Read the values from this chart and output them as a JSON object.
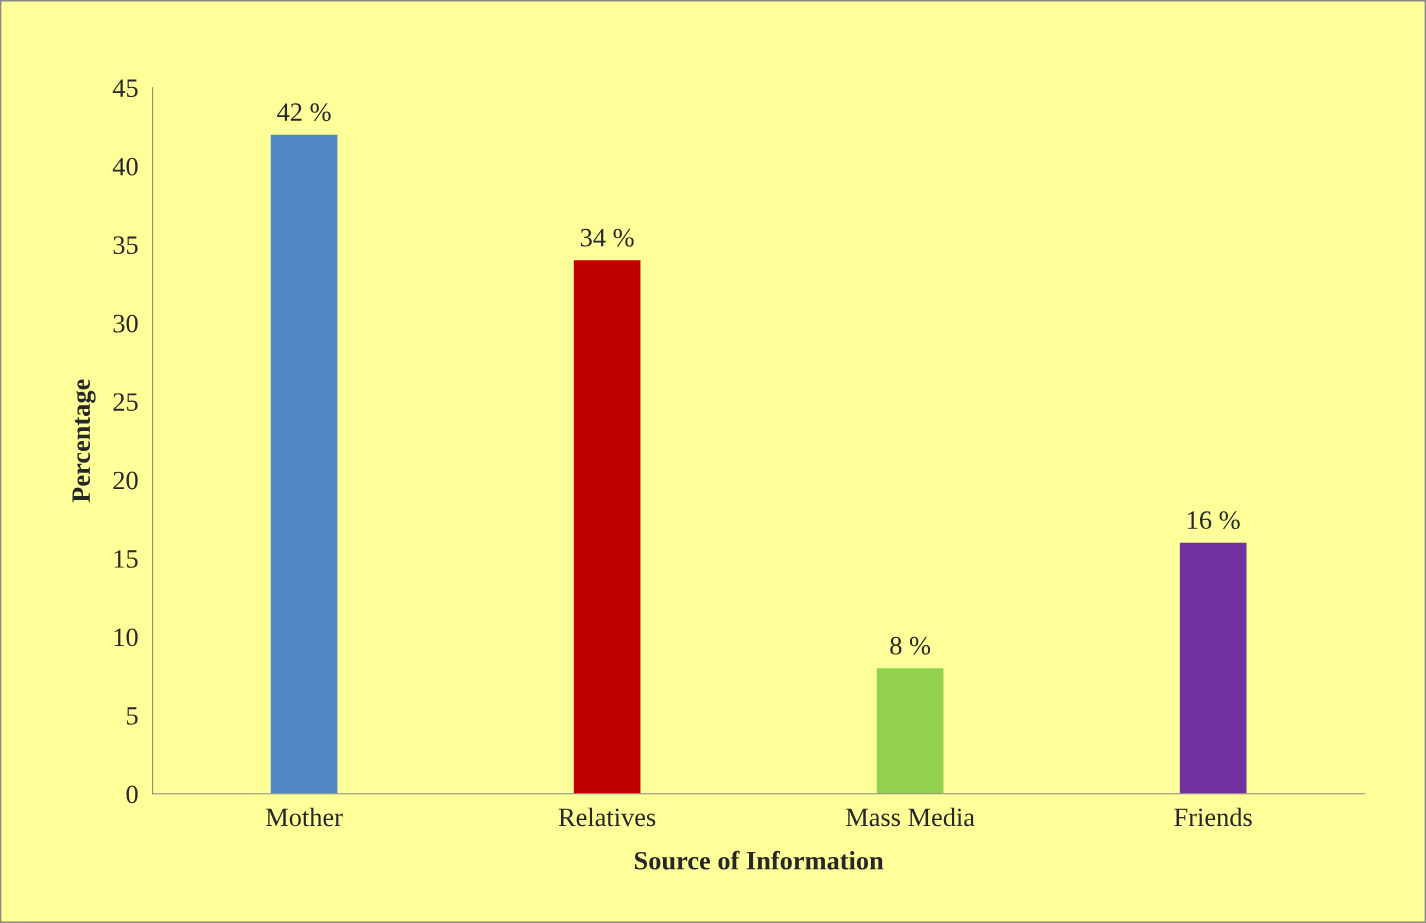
{
  "chart_data": {
    "type": "bar",
    "xlabel": "Source of Information",
    "ylabel": "Percentage",
    "categories": [
      "Mother",
      "Relatives",
      "Mass Media",
      "Friends"
    ],
    "values": [
      42,
      34,
      8,
      16
    ],
    "colors": [
      "#4f86c6",
      "#c00000",
      "#92d050",
      "#7030a0"
    ],
    "value_labels": [
      "42 %",
      "34 %",
      "8 %",
      "16 %"
    ],
    "ylim": [
      0,
      45
    ],
    "yticks": [
      0,
      5,
      10,
      15,
      20,
      25,
      30,
      35,
      40,
      45
    ],
    "grid": false
  }
}
